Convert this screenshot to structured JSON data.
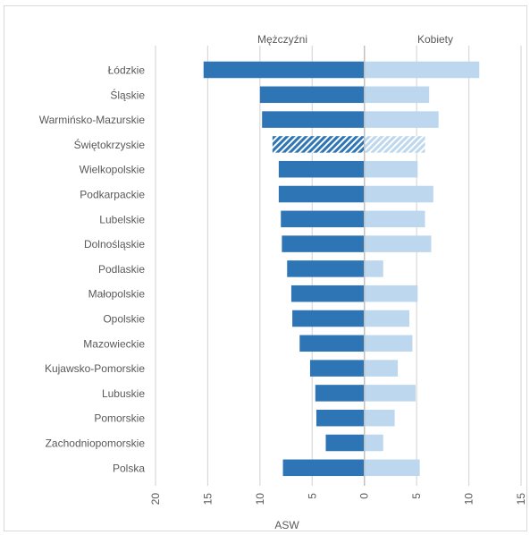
{
  "chart_data": {
    "type": "bar",
    "orientation": "horizontal-diverging",
    "categories": [
      "Łódzkie",
      "Śląskie",
      "Warmińsko-Mazurskie",
      "Świętokrzyskie",
      "Wielkopolskie",
      "Podkarpackie",
      "Lubelskie",
      "Dolnośląskie",
      "Podlaskie",
      "Małopolskie",
      "Opolskie",
      "Mazowieckie",
      "Kujawsko-Pomorskie",
      "Lubuskie",
      "Pomorskie",
      "Zachodniopomorskie",
      "Polska"
    ],
    "series": [
      {
        "name": "Mężczyźni",
        "color": "#2e75b6",
        "values": [
          15.4,
          10.0,
          9.8,
          8.8,
          8.2,
          8.2,
          8.0,
          7.9,
          7.4,
          7.0,
          6.9,
          6.2,
          5.2,
          4.7,
          4.6,
          3.7,
          7.8
        ]
      },
      {
        "name": "Kobiety",
        "color": "#bdd7ee",
        "values": [
          11.0,
          6.2,
          7.1,
          5.8,
          5.1,
          6.6,
          5.8,
          6.4,
          1.8,
          5.1,
          4.3,
          4.6,
          3.2,
          4.9,
          2.9,
          1.8,
          5.3
        ]
      }
    ],
    "hatched_category": "Świętokrzyskie",
    "xlabel": "ASW",
    "xlim": [
      -20,
      15
    ],
    "x_ticks": [
      -20,
      -15,
      -10,
      -5,
      0,
      5,
      10,
      15
    ],
    "x_tick_labels": [
      "20",
      "15",
      "10",
      "5",
      "0",
      "5",
      "10",
      "15"
    ],
    "grid": true,
    "legend_placement": "top"
  }
}
